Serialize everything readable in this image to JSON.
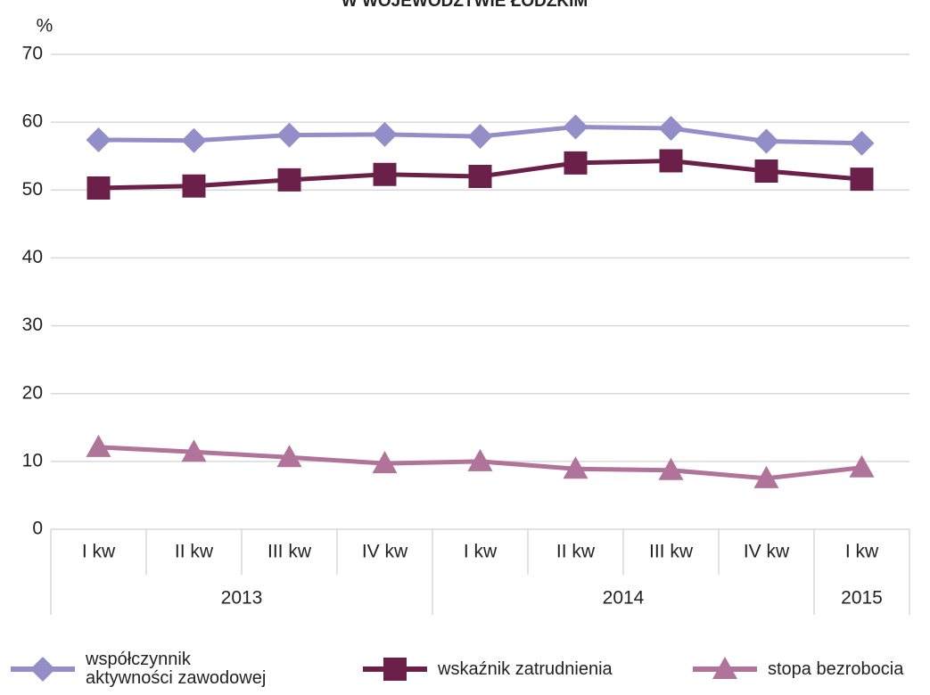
{
  "chart_data": {
    "type": "line",
    "title": "W WOJEWÓDZTWIE ŁÓDZKIM",
    "y_label": "%",
    "categories": [
      "I kw",
      "II kw",
      "III kw",
      "IV kw",
      "I kw",
      "II kw",
      "III kw",
      "IV kw",
      "I kw"
    ],
    "groups": [
      {
        "label": "2013",
        "span": 4
      },
      {
        "label": "2014",
        "span": 4
      },
      {
        "label": "2015",
        "span": 1
      }
    ],
    "series": [
      {
        "name": "współczynnik\naktywności zawodowej",
        "color": "#948ec8",
        "marker": "diamond",
        "values": [
          57.4,
          57.3,
          58.1,
          58.2,
          57.9,
          59.3,
          59.1,
          57.2,
          56.9
        ]
      },
      {
        "name": "wskaźnik zatrudnienia",
        "color": "#6b2049",
        "marker": "square",
        "values": [
          50.3,
          50.6,
          51.5,
          52.3,
          52.0,
          54.0,
          54.3,
          52.8,
          51.6
        ]
      },
      {
        "name": "stopa bezrobocia",
        "color": "#b0739a",
        "marker": "triangle",
        "values": [
          12.1,
          11.4,
          10.6,
          9.7,
          10.0,
          8.9,
          8.7,
          7.5,
          9.1
        ]
      }
    ],
    "ylim": [
      0,
      70
    ],
    "yticks": [
      0,
      10,
      20,
      30,
      40,
      50,
      60,
      70
    ],
    "grid": true,
    "legend": "bottom"
  }
}
